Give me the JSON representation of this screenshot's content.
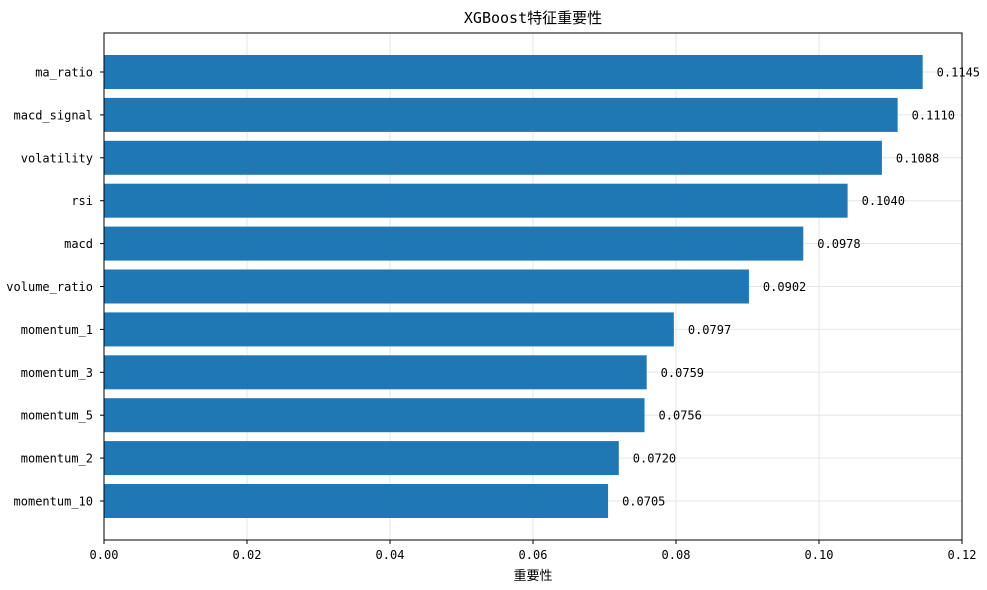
{
  "chart_data": {
    "type": "bar",
    "orientation": "horizontal",
    "title": "XGBoost特征重要性",
    "xlabel": "重要性",
    "ylabel": "",
    "categories": [
      "ma_ratio",
      "macd_signal",
      "volatility",
      "rsi",
      "macd",
      "volume_ratio",
      "momentum_1",
      "momentum_3",
      "momentum_5",
      "momentum_2",
      "momentum_10"
    ],
    "values": [
      0.1145,
      0.111,
      0.1088,
      0.104,
      0.0978,
      0.0902,
      0.0797,
      0.0759,
      0.0756,
      0.072,
      0.0705
    ],
    "value_labels": [
      "0.1145",
      "0.1110",
      "0.1088",
      "0.1040",
      "0.0978",
      "0.0902",
      "0.0797",
      "0.0759",
      "0.0756",
      "0.0720",
      "0.0705"
    ],
    "xlim": [
      0,
      0.12
    ],
    "xticks": [
      0.0,
      0.02,
      0.04,
      0.06,
      0.08,
      0.1,
      0.12
    ],
    "xtick_labels": [
      "0.00",
      "0.02",
      "0.04",
      "0.06",
      "0.08",
      "0.10",
      "0.12"
    ],
    "grid": true,
    "legend": "none",
    "bar_color": "#1f77b4"
  }
}
